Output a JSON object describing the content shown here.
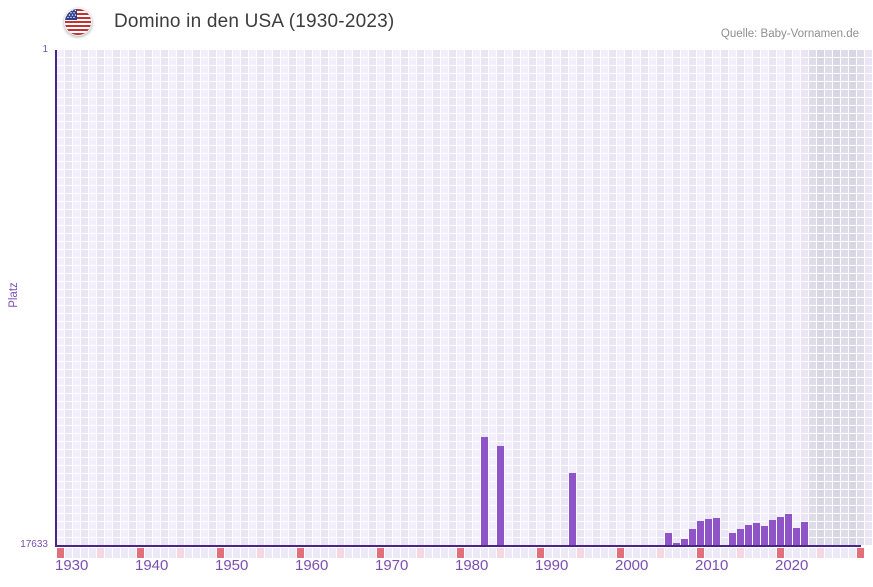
{
  "header": {
    "title": "Domino in den USA (1930-2023)",
    "source": "Quelle: Baby-Vornamen.de",
    "flag_icon": "us-flag-icon"
  },
  "y_axis": {
    "title": "Platz",
    "top_tick": "1",
    "bottom_tick": "17633"
  },
  "x_axis": {
    "decade_labels": [
      "1930",
      "1940",
      "1950",
      "1960",
      "1970",
      "1980",
      "1990",
      "2000",
      "2010",
      "2020"
    ],
    "first_year": 1930,
    "last_tick_year": 2030,
    "data_end_year": 2023
  },
  "chart_data": {
    "type": "bar",
    "title": "Domino in den USA (1930-2023)",
    "xlabel": "",
    "ylabel": "Platz",
    "ylim": [
      1,
      17633
    ],
    "y_inverted": true,
    "grid": true,
    "x_range": [
      1930,
      2029
    ],
    "series": [
      {
        "name": "Platz",
        "points": [
          {
            "year": 1983,
            "rank": 13800
          },
          {
            "year": 1985,
            "rank": 14100
          },
          {
            "year": 1994,
            "rank": 15070
          },
          {
            "year": 2006,
            "rank": 17200
          },
          {
            "year": 2007,
            "rank": 17560
          },
          {
            "year": 2008,
            "rank": 17420
          },
          {
            "year": 2009,
            "rank": 17060
          },
          {
            "year": 2010,
            "rank": 16780
          },
          {
            "year": 2011,
            "rank": 16710
          },
          {
            "year": 2012,
            "rank": 16670
          },
          {
            "year": 2014,
            "rank": 17210
          },
          {
            "year": 2015,
            "rank": 17060
          },
          {
            "year": 2016,
            "rank": 16920
          },
          {
            "year": 2017,
            "rank": 16850
          },
          {
            "year": 2018,
            "rank": 16960
          },
          {
            "year": 2019,
            "rank": 16740
          },
          {
            "year": 2020,
            "rank": 16640
          },
          {
            "year": 2021,
            "rank": 16530
          },
          {
            "year": 2022,
            "rank": 17030
          },
          {
            "year": 2023,
            "rank": 16810
          }
        ]
      }
    ],
    "annotations": {
      "future_band_years": [
        2024,
        2029
      ],
      "major_tick_interval": 10,
      "minor_tick_interval": 5
    }
  },
  "colors": {
    "bar": "#8F55C8",
    "axis": "#4B2489",
    "tick_text": "#7B4FB0",
    "title_text": "#3D3D3D",
    "source_text": "#8F8F8F",
    "cell_a": "#F2EFFA",
    "cell_b": "#E9E5F4",
    "band_a": "#DFDCE9",
    "band_b": "#D8D5E4",
    "major_tick": "#E2707C",
    "minor_tick": "#F5D7E1",
    "plain_tick": "#EDE9F6"
  }
}
